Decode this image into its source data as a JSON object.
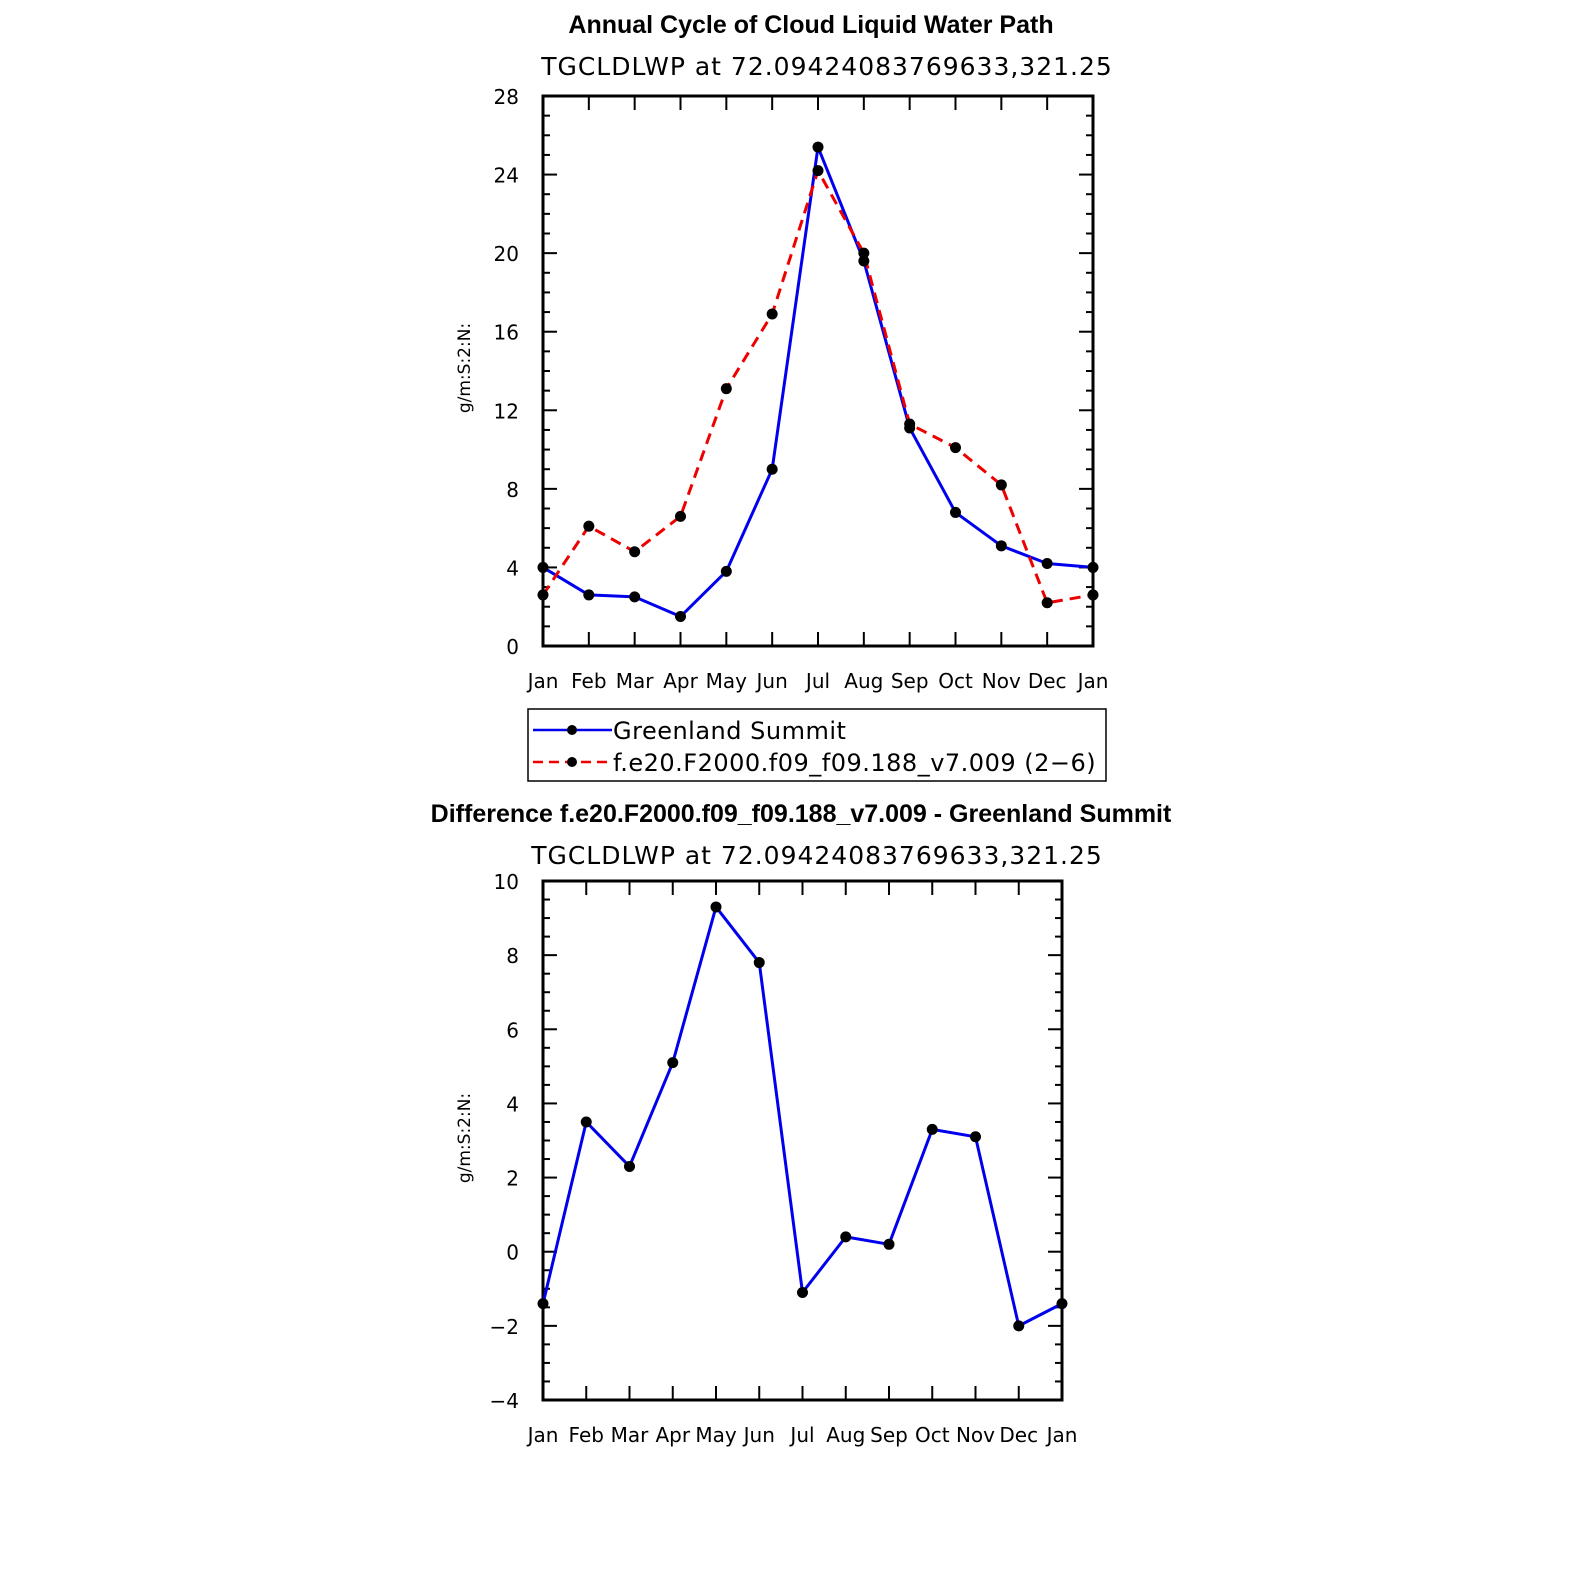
{
  "figure": {
    "top_title": "Annual Cycle of Cloud Liquid Water Path",
    "bottom_title": "Difference f.e20.F2000.f09_f09.188_v7.009 - Greenland Summit"
  },
  "chart_data": [
    {
      "type": "line",
      "title": "Annual Cycle of Cloud Liquid Water Path",
      "subtitle": "TGCLDLWP  at  72.09424083769633,321.25",
      "xlabel": "",
      "ylabel": "g/m:S:2:N:",
      "categories": [
        "Jan",
        "Feb",
        "Mar",
        "Apr",
        "May",
        "Jun",
        "Jul",
        "Aug",
        "Sep",
        "Oct",
        "Nov",
        "Dec",
        "Jan"
      ],
      "ylim": [
        0,
        28
      ],
      "yticks": [
        0,
        4,
        8,
        12,
        16,
        20,
        24,
        28
      ],
      "legend_position": "below",
      "series": [
        {
          "name": "Greenland Summit",
          "color": "#0000ee",
          "style": "solid",
          "values": [
            4.0,
            2.6,
            2.5,
            1.5,
            3.8,
            9.0,
            25.4,
            19.6,
            11.1,
            6.8,
            5.1,
            4.2,
            4.0
          ]
        },
        {
          "name": "f.e20.F2000.f09_f09.188_v7.009 (2−6)",
          "color": "#ee0000",
          "style": "dashed",
          "values": [
            2.6,
            6.1,
            4.8,
            6.6,
            13.1,
            16.9,
            24.2,
            20.0,
            11.3,
            10.1,
            8.2,
            2.2,
            2.6
          ]
        }
      ]
    },
    {
      "type": "line",
      "title": "Difference f.e20.F2000.f09_f09.188_v7.009 - Greenland Summit",
      "subtitle": "TGCLDLWP  at  72.09424083769633,321.25",
      "xlabel": "",
      "ylabel": "g/m:S:2:N:",
      "categories": [
        "Jan",
        "Feb",
        "Mar",
        "Apr",
        "May",
        "Jun",
        "Jul",
        "Aug",
        "Sep",
        "Oct",
        "Nov",
        "Dec",
        "Jan"
      ],
      "ylim": [
        -4,
        10
      ],
      "yticks": [
        -4,
        -2,
        0,
        2,
        4,
        6,
        8,
        10
      ],
      "series": [
        {
          "name": "Difference",
          "color": "#0000ee",
          "style": "solid",
          "values": [
            -1.4,
            3.5,
            2.3,
            5.1,
            9.3,
            7.8,
            -1.1,
            0.4,
            0.2,
            3.3,
            3.1,
            -2.0,
            -1.4
          ]
        }
      ]
    }
  ]
}
